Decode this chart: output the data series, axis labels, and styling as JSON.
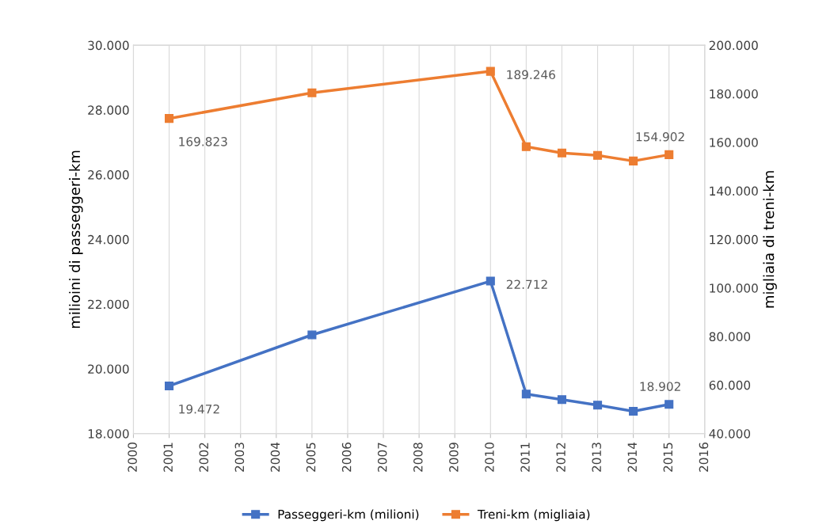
{
  "chart_data": {
    "type": "line",
    "ylabel": "milioini di passeggeri-km",
    "y2label": "migliaia di treni-km",
    "x": [
      2001,
      2005,
      2010,
      2011,
      2012,
      2013,
      2014,
      2015
    ],
    "series": [
      {
        "name": "Passeggeri-km (milioni)",
        "color": "#4472c4",
        "values": [
          19472,
          21050,
          22712,
          19220,
          19050,
          18880,
          18690,
          18902
        ],
        "value_labels": [
          "19.472",
          null,
          "22.712",
          null,
          null,
          null,
          null,
          "18.902"
        ]
      },
      {
        "name": "Treni-km (migliaia)",
        "color": "#ed7d31",
        "axis": "y2",
        "values": [
          169823,
          180400,
          189246,
          158200,
          155600,
          154600,
          152300,
          154902
        ],
        "value_labels": [
          "169.823",
          null,
          "189.246",
          null,
          null,
          null,
          null,
          "154.902"
        ]
      }
    ],
    "xlim": [
      2000,
      2016
    ],
    "xticks": [
      2000,
      2001,
      2002,
      2003,
      2004,
      2005,
      2006,
      2007,
      2008,
      2009,
      2010,
      2011,
      2012,
      2013,
      2014,
      2015,
      2016
    ],
    "ylim": [
      18000,
      30000
    ],
    "yticks": [
      {
        "value": 18000,
        "label": "18.000"
      },
      {
        "value": 20000,
        "label": "20.000"
      },
      {
        "value": 22000,
        "label": "22.000"
      },
      {
        "value": 24000,
        "label": "24.000"
      },
      {
        "value": 26000,
        "label": "26.000"
      },
      {
        "value": 28000,
        "label": "28.000"
      },
      {
        "value": 30000,
        "label": "30.000"
      }
    ],
    "y2lim": [
      40000,
      200000
    ],
    "y2ticks": [
      {
        "value": 40000,
        "label": "40.000"
      },
      {
        "value": 60000,
        "label": "60.000"
      },
      {
        "value": 80000,
        "label": "80.000"
      },
      {
        "value": 100000,
        "label": "100.000"
      },
      {
        "value": 120000,
        "label": "120.000"
      },
      {
        "value": 140000,
        "label": "140.000"
      },
      {
        "value": 160000,
        "label": "160.000"
      },
      {
        "value": 180000,
        "label": "180.000"
      },
      {
        "value": 200000,
        "label": "200.000"
      }
    ],
    "grid": "x",
    "legend": "bottom",
    "marker": "square",
    "line_style": "solid"
  }
}
